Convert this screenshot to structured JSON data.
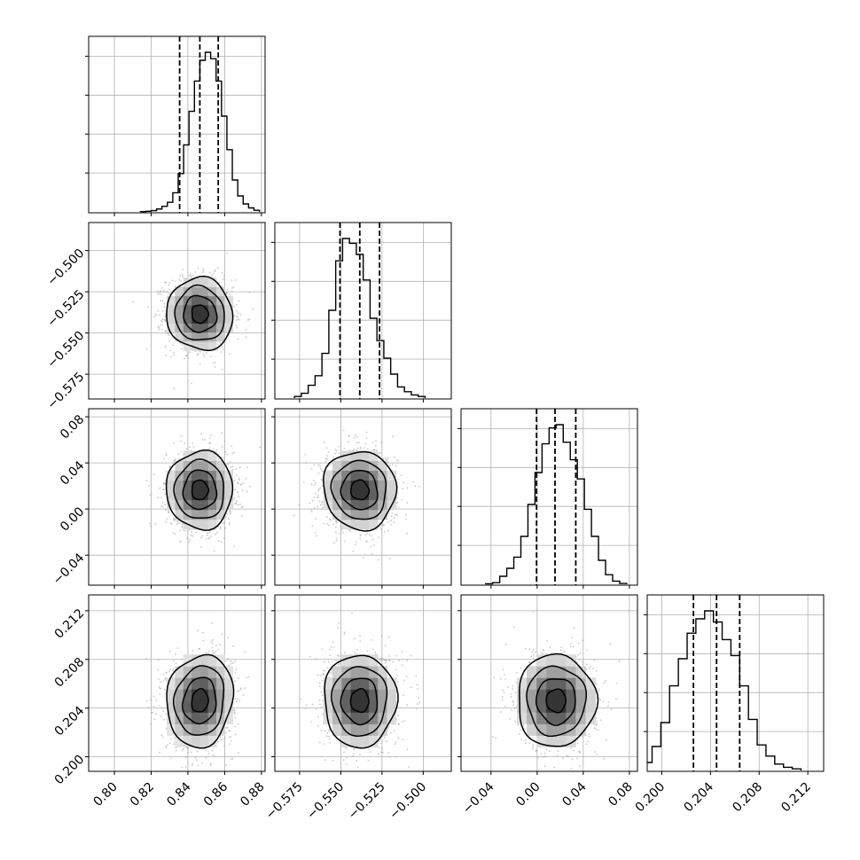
{
  "chart_data": {
    "type": "corner",
    "params": [
      {
        "range": [
          0.786,
          0.882
        ],
        "ticks": [
          0.8,
          0.82,
          0.84,
          0.86,
          0.88
        ],
        "tick_labels": [
          "0.80",
          "0.82",
          "0.84",
          "0.86",
          "0.88"
        ],
        "quantiles": [
          0.8355,
          0.8465,
          0.8565
        ],
        "mean": 0.8465,
        "sigma": 0.009
      },
      {
        "range": [
          -0.59,
          -0.483
        ],
        "ticks": [
          -0.575,
          -0.55,
          -0.525,
          -0.5
        ],
        "tick_labels": [
          "−0.575",
          "−0.550",
          "−0.525",
          "−0.500"
        ],
        "quantiles": [
          -0.5505,
          -0.5385,
          -0.5265
        ],
        "mean": -0.5385,
        "sigma": 0.011
      },
      {
        "range": [
          -0.066,
          0.087
        ],
        "ticks": [
          -0.04,
          0.0,
          0.04,
          0.08
        ],
        "tick_labels": [
          "−0.04",
          "0.00",
          "0.04",
          "0.08"
        ],
        "quantiles": [
          -0.0005,
          0.0155,
          0.0335
        ],
        "mean": 0.0165,
        "sigma": 0.017
      },
      {
        "range": [
          0.1988,
          0.2133
        ],
        "ticks": [
          0.2,
          0.204,
          0.208,
          0.212
        ],
        "tick_labels": [
          "0.200",
          "0.204",
          "0.208",
          "0.212"
        ],
        "quantiles": [
          0.2026,
          0.2045,
          0.2064
        ],
        "mean": 0.2046,
        "sigma": 0.0019
      }
    ],
    "histograms": [
      [
        0.002,
        0.004,
        0.008,
        0.018,
        0.035,
        0.06,
        0.12,
        0.24,
        0.42,
        0.63,
        0.82,
        0.95,
        1.0,
        0.96,
        0.82,
        0.6,
        0.39,
        0.2,
        0.1,
        0.05,
        0.025,
        0.01
      ],
      [
        0.01,
        0.03,
        0.08,
        0.14,
        0.28,
        0.55,
        0.86,
        1.0,
        0.97,
        0.9,
        0.74,
        0.5,
        0.36,
        0.25,
        0.15,
        0.07,
        0.04,
        0.02,
        0.01
      ],
      [
        0.003,
        0.01,
        0.05,
        0.1,
        0.17,
        0.3,
        0.5,
        0.7,
        0.88,
        0.98,
        1.0,
        0.89,
        0.78,
        0.66,
        0.47,
        0.3,
        0.15,
        0.06,
        0.02,
        0.005
      ],
      [
        0.01,
        0.05,
        0.15,
        0.3,
        0.53,
        0.7,
        0.86,
        0.95,
        1.0,
        0.93,
        0.82,
        0.72,
        0.53,
        0.32,
        0.16,
        0.09,
        0.04,
        0.02,
        0.01
      ]
    ],
    "correlations": [
      [
        0,
        -0.05,
        0.0,
        0.1
      ],
      [
        -0.05,
        0,
        -0.05,
        0.0
      ],
      [
        0.0,
        -0.05,
        0,
        0.0
      ],
      [
        0.1,
        0.0,
        0.0,
        0
      ]
    ],
    "contour_levels_sigma": [
      0.5,
      1.0,
      1.5,
      2.0
    ],
    "grid": true,
    "xlabel": "",
    "ylabel": "",
    "title": ""
  },
  "colors": {
    "ink": "#000000",
    "grid": "#b0b0b0",
    "points": "#9a9a9a"
  }
}
